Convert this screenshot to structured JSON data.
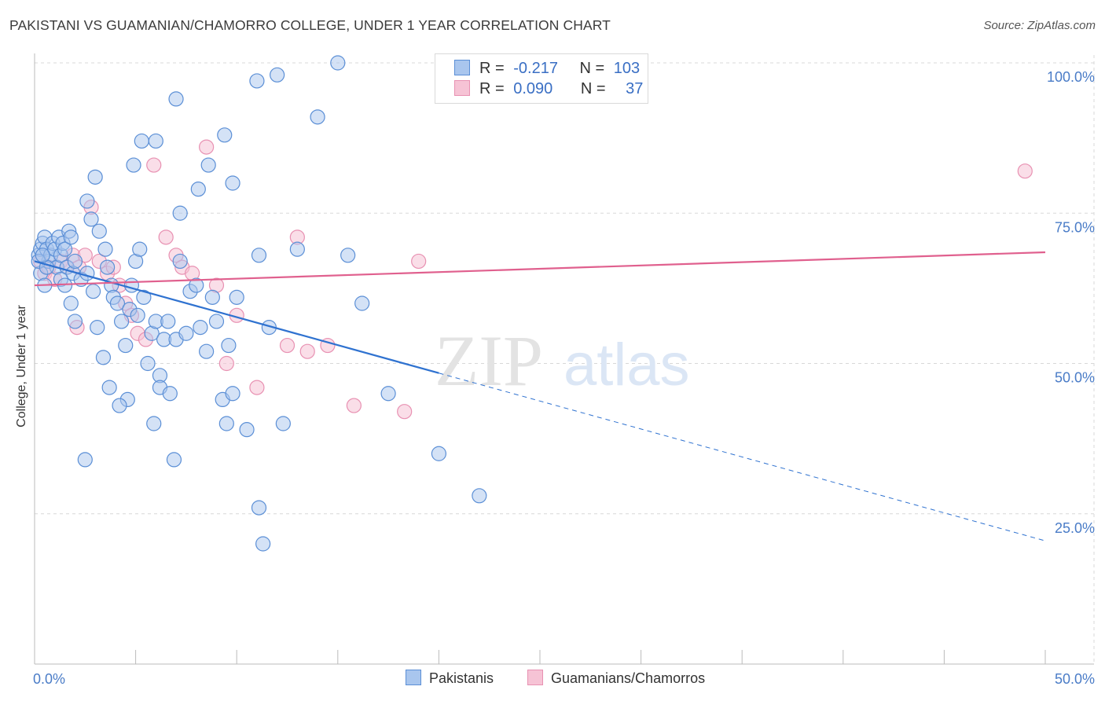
{
  "title": "PAKISTANI VS GUAMANIAN/CHAMORRO COLLEGE, UNDER 1 YEAR CORRELATION CHART",
  "source": "Source: ZipAtlas.com",
  "watermark": {
    "zip": "ZIP",
    "atlas": "atlas"
  },
  "legend": {
    "r_label": "R =",
    "n_label": "N =",
    "series": [
      {
        "r": "-0.217",
        "n": "103"
      },
      {
        "r": "0.090",
        "n": "37"
      }
    ]
  },
  "chart_data": {
    "type": "scatter",
    "title": "PAKISTANI VS GUAMANIAN/CHAMORRO COLLEGE, UNDER 1 YEAR CORRELATION CHART",
    "xlabel": "",
    "ylabel": "College, Under 1 year",
    "xlim": [
      0,
      50
    ],
    "ylim": [
      0,
      100
    ],
    "x_tick_labels": [
      "0.0%",
      "50.0%"
    ],
    "y_tick_labels": [
      "100.0%",
      "75.0%",
      "50.0%",
      "25.0%"
    ],
    "y_tick_values": [
      100,
      75,
      50,
      25
    ],
    "grid": true,
    "colors": {
      "blue_fill": "#a9c6ee",
      "blue_stroke": "#5b8fd6",
      "blue_line": "#2f72d0",
      "pink_fill": "#f6c3d5",
      "pink_stroke": "#e891b2",
      "pink_line": "#e0608e"
    },
    "series": [
      {
        "name": "Pakistanis",
        "trend": {
          "x0": 0,
          "y0": 67,
          "x1": 50,
          "y1": 20.5,
          "solid_until": 20
        },
        "points": [
          [
            0.2,
            68
          ],
          [
            0.3,
            69
          ],
          [
            0.4,
            70
          ],
          [
            0.5,
            71
          ],
          [
            0.6,
            69
          ],
          [
            0.7,
            67
          ],
          [
            0.8,
            68
          ],
          [
            0.9,
            70
          ],
          [
            1.0,
            69
          ],
          [
            1.1,
            66
          ],
          [
            1.2,
            71
          ],
          [
            1.3,
            68
          ],
          [
            1.4,
            70
          ],
          [
            1.5,
            69
          ],
          [
            1.6,
            66
          ],
          [
            1.7,
            72
          ],
          [
            1.8,
            71
          ],
          [
            1.9,
            65
          ],
          [
            2.0,
            67
          ],
          [
            0.3,
            65
          ],
          [
            0.5,
            63
          ],
          [
            0.2,
            67
          ],
          [
            0.6,
            66
          ],
          [
            0.4,
            68
          ],
          [
            1.3,
            64
          ],
          [
            1.5,
            63
          ],
          [
            1.8,
            60
          ],
          [
            2.0,
            57
          ],
          [
            2.3,
            64
          ],
          [
            2.6,
            65
          ],
          [
            2.9,
            62
          ],
          [
            3.2,
            72
          ],
          [
            3.5,
            69
          ],
          [
            3.6,
            66
          ],
          [
            3.8,
            63
          ],
          [
            3.9,
            61
          ],
          [
            4.1,
            60
          ],
          [
            4.3,
            57
          ],
          [
            4.5,
            53
          ],
          [
            4.7,
            59
          ],
          [
            4.8,
            63
          ],
          [
            5.0,
            67
          ],
          [
            5.2,
            69
          ],
          [
            5.4,
            61
          ],
          [
            5.6,
            50
          ],
          [
            5.8,
            55
          ],
          [
            6.0,
            57
          ],
          [
            6.2,
            48
          ],
          [
            6.4,
            54
          ],
          [
            6.6,
            57
          ],
          [
            7.0,
            54
          ],
          [
            7.2,
            75
          ],
          [
            7.5,
            55
          ],
          [
            7.7,
            62
          ],
          [
            8.0,
            63
          ],
          [
            8.2,
            56
          ],
          [
            8.5,
            52
          ],
          [
            8.8,
            61
          ],
          [
            9.0,
            57
          ],
          [
            9.3,
            44
          ],
          [
            9.6,
            53
          ],
          [
            10.0,
            61
          ],
          [
            2.8,
            74
          ],
          [
            2.6,
            77
          ],
          [
            3.0,
            81
          ],
          [
            4.9,
            83
          ],
          [
            5.3,
            87
          ],
          [
            6.0,
            87
          ],
          [
            7.0,
            94
          ],
          [
            8.1,
            79
          ],
          [
            8.6,
            83
          ],
          [
            9.4,
            88
          ],
          [
            9.8,
            80
          ],
          [
            11.0,
            97
          ],
          [
            11.1,
            68
          ],
          [
            12.0,
            98
          ],
          [
            13.0,
            69
          ],
          [
            14.0,
            91
          ],
          [
            15.0,
            100
          ],
          [
            15.5,
            68
          ],
          [
            16.2,
            60
          ],
          [
            17.5,
            45
          ],
          [
            20.0,
            35
          ],
          [
            22.0,
            28
          ],
          [
            11.6,
            56
          ],
          [
            12.3,
            40
          ],
          [
            9.5,
            40
          ],
          [
            9.8,
            45
          ],
          [
            10.5,
            39
          ],
          [
            11.1,
            26
          ],
          [
            11.3,
            20
          ],
          [
            4.6,
            44
          ],
          [
            4.2,
            43
          ],
          [
            6.2,
            46
          ],
          [
            3.4,
            51
          ],
          [
            3.7,
            46
          ],
          [
            6.7,
            45
          ],
          [
            5.9,
            40
          ],
          [
            6.9,
            34
          ],
          [
            2.5,
            34
          ],
          [
            3.1,
            56
          ],
          [
            7.2,
            67
          ],
          [
            5.1,
            58
          ]
        ]
      },
      {
        "name": "Guamanians/Chamorros",
        "trend": {
          "x0": 0,
          "y0": 63,
          "x1": 50,
          "y1": 68.5
        },
        "points": [
          [
            0.3,
            67
          ],
          [
            0.5,
            65
          ],
          [
            0.7,
            66
          ],
          [
            1.0,
            64
          ],
          [
            1.3,
            67
          ],
          [
            1.6,
            66
          ],
          [
            1.9,
            68
          ],
          [
            2.2,
            66
          ],
          [
            2.5,
            68
          ],
          [
            2.8,
            76
          ],
          [
            3.2,
            67
          ],
          [
            3.6,
            65
          ],
          [
            3.9,
            66
          ],
          [
            4.2,
            63
          ],
          [
            4.5,
            60
          ],
          [
            4.8,
            58
          ],
          [
            5.1,
            55
          ],
          [
            5.5,
            54
          ],
          [
            5.9,
            83
          ],
          [
            6.5,
            71
          ],
          [
            7.0,
            68
          ],
          [
            7.3,
            66
          ],
          [
            7.8,
            65
          ],
          [
            8.5,
            86
          ],
          [
            9.0,
            63
          ],
          [
            9.5,
            50
          ],
          [
            10.0,
            58
          ],
          [
            11.0,
            46
          ],
          [
            12.5,
            53
          ],
          [
            13.0,
            71
          ],
          [
            13.5,
            52
          ],
          [
            14.5,
            53
          ],
          [
            15.8,
            43
          ],
          [
            18.3,
            42
          ],
          [
            19.0,
            67
          ],
          [
            49.0,
            82
          ],
          [
            2.1,
            56
          ]
        ]
      }
    ]
  },
  "bottom_legend": [
    "Pakistanis",
    "Guamanians/Chamorros"
  ]
}
